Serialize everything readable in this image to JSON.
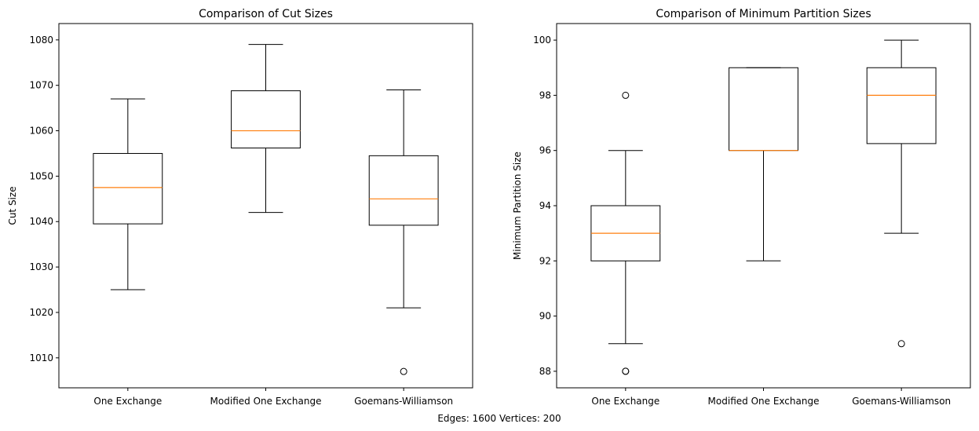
{
  "footer": "Edges: 1600 Vertices: 200",
  "chart_data": [
    {
      "type": "box",
      "title": "Comparison of Cut Sizes",
      "xlabel": "",
      "ylabel": "Cut Size",
      "ylim": [
        1003.4,
        1083.6
      ],
      "yticks": [
        1010,
        1020,
        1030,
        1040,
        1050,
        1060,
        1070,
        1080
      ],
      "grid": false,
      "categories": [
        "One Exchange",
        "Modified One Exchange",
        "Goemans-Williamson"
      ],
      "boxes": [
        {
          "whislo": 1025,
          "q1": 1039.5,
          "med": 1047.5,
          "q3": 1055,
          "whishi": 1067,
          "fliers": []
        },
        {
          "whislo": 1042,
          "q1": 1056.2,
          "med": 1060,
          "q3": 1068.8,
          "whishi": 1079,
          "fliers": []
        },
        {
          "whislo": 1021,
          "q1": 1039.2,
          "med": 1045,
          "q3": 1054.5,
          "whishi": 1069,
          "fliers": [
            1007
          ]
        }
      ]
    },
    {
      "type": "box",
      "title": "Comparison of Minimum Partition Sizes",
      "xlabel": "",
      "ylabel": "Minimum Partition Size",
      "ylim": [
        87.4,
        100.6
      ],
      "yticks": [
        88,
        90,
        92,
        94,
        96,
        98,
        100
      ],
      "grid": false,
      "categories": [
        "One Exchange",
        "Modified One Exchange",
        "Goemans-Williamson"
      ],
      "boxes": [
        {
          "whislo": 89,
          "q1": 92,
          "med": 93,
          "q3": 94,
          "whishi": 96,
          "fliers": [
            98,
            88,
            88
          ]
        },
        {
          "whislo": 92,
          "q1": 96,
          "med": 96,
          "q3": 99,
          "whishi": 99,
          "fliers": []
        },
        {
          "whislo": 93,
          "q1": 96.25,
          "med": 98,
          "q3": 99,
          "whishi": 100,
          "fliers": [
            89
          ]
        }
      ]
    }
  ]
}
